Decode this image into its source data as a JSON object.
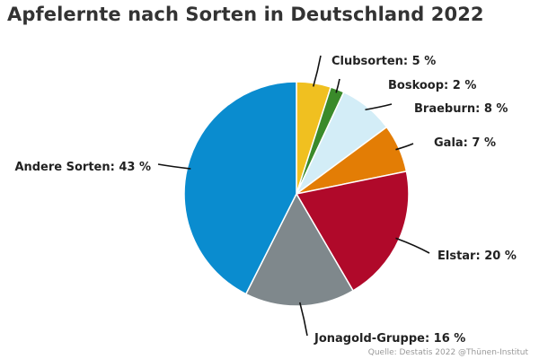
{
  "chart_data": {
    "type": "pie",
    "title": "Apfelernte nach Sorten in Deutschland 2022",
    "slices": [
      {
        "label": "Clubsorten",
        "value": 5,
        "display": "Clubsorten: 5 %",
        "color": "#f0c020"
      },
      {
        "label": "Boskoop",
        "value": 2,
        "display": "Boskoop: 2 %",
        "color": "#3a8a2a"
      },
      {
        "label": "Braeburn",
        "value": 8,
        "display": "Braeburn: 8 %",
        "color": "#d3edf7"
      },
      {
        "label": "Gala",
        "value": 7,
        "display": "Gala: 7 %",
        "color": "#e37d05"
      },
      {
        "label": "Elstar",
        "value": 20,
        "display": "Elstar: 20 %",
        "color": "#b0092a"
      },
      {
        "label": "Jonagold-Gruppe",
        "value": 16,
        "display": "Jonagold-Gruppe: 16 %",
        "color": "#7f888c"
      },
      {
        "label": "Andere Sorten",
        "value": 43,
        "display": "Andere Sorten: 43 %",
        "color": "#0a8ccf"
      }
    ],
    "source": "Quelle: Destatis 2022 @Thünen-Institut"
  }
}
